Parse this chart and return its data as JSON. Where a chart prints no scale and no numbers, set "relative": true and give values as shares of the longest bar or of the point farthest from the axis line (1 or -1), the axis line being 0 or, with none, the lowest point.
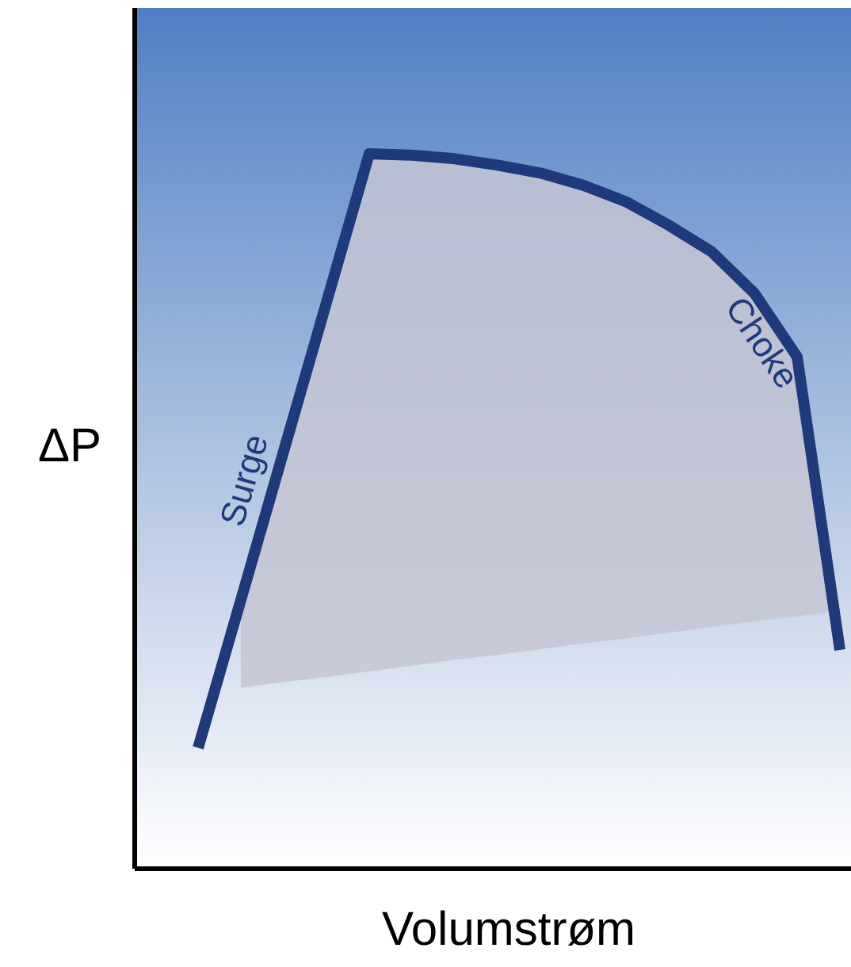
{
  "chart_data": {
    "type": "line",
    "relative": true,
    "xlabel": "Volumstrøm",
    "ylabel": "ΔP",
    "categories": [
      null,
      null,
      null,
      null,
      null,
      null,
      null,
      null,
      null,
      null,
      null,
      null,
      null,
      null,
      null,
      null
    ],
    "series": [
      {
        "color": "#1f3a7a",
        "values": [
          0.169,
          0.376,
          0.584,
          0.792,
          1,
          0.998,
          0.993,
          0.984,
          0.973,
          0.956,
          0.933,
          0.9,
          0.863,
          0.805,
          0.716,
          0.306
        ],
        "upper": [
          null,
          0.376,
          0.584,
          0.792,
          1,
          0.998,
          0.993,
          0.984,
          0.973,
          0.956,
          0.933,
          0.9,
          0.863,
          0.805,
          0.716,
          0.361
        ],
        "lower": [
          null,
          0.253,
          0.261,
          0.268,
          0.276,
          0.284,
          0.292,
          0.299,
          0.307,
          0.315,
          0.322,
          0.33,
          0.338,
          0.346,
          0.353,
          0.361
        ]
      }
    ],
    "annotations": [
      "Surge",
      "Choke"
    ]
  }
}
